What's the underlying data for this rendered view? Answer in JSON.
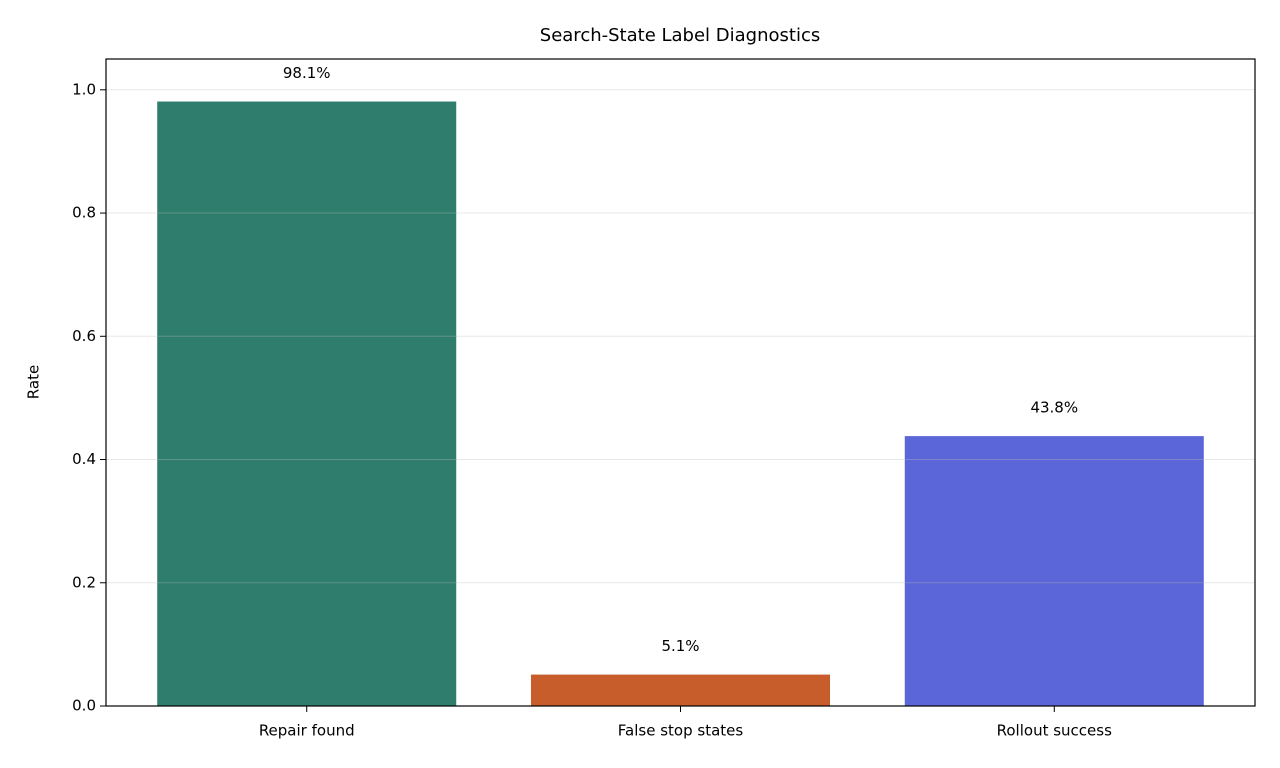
{
  "chart_data": {
    "type": "bar",
    "title": "Search-State Label Diagnostics",
    "y_label": "Rate",
    "categories": [
      "Repair found",
      "False stop states",
      "Rollout success"
    ],
    "values": [
      0.981,
      0.051,
      0.438
    ],
    "value_labels": [
      "98.1%",
      "5.1%",
      "43.8%"
    ],
    "colors": [
      "#2e7d6d",
      "#c65d2b",
      "#5b67d8"
    ],
    "ylim": [
      0,
      1.05
    ],
    "yticks": [
      {
        "value": 0,
        "label": "0.0"
      },
      0.2,
      0.4,
      0.6,
      0.8,
      {
        "value": 1,
        "label": "1.0"
      }
    ],
    "grid": true
  }
}
